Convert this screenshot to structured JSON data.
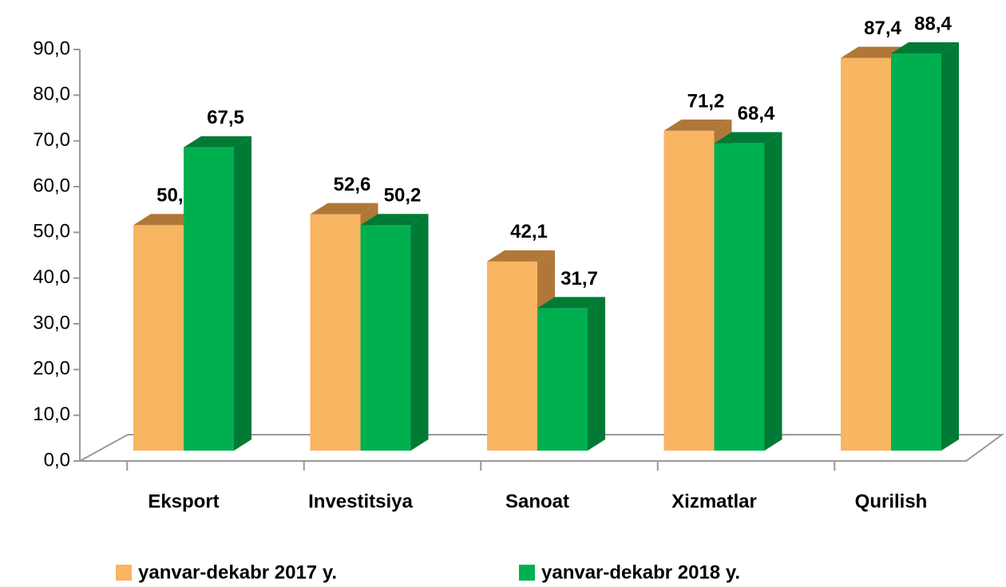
{
  "chart_data": {
    "type": "bar3d",
    "categories": [
      "Eksport",
      "Investitsiya",
      "Sanoat",
      "Xizmatlar",
      "Qurilish"
    ],
    "series": [
      {
        "name": "yanvar-dekabr 2017 y.",
        "color": "#F8B562",
        "side_color": "#B07838",
        "values": [
          50.2,
          52.6,
          42.1,
          71.2,
          87.4
        ],
        "value_labels": [
          "50,2",
          "52,6",
          "42,1",
          "71,2",
          "87,4"
        ]
      },
      {
        "name": "yanvar-dekabr 2018 y.",
        "color": "#00B050",
        "side_color": "#007A35",
        "values": [
          67.5,
          50.2,
          31.7,
          68.4,
          88.4
        ],
        "value_labels": [
          "67,5",
          "50,2",
          "31,7",
          "68,4",
          "88,4"
        ]
      }
    ],
    "ylim": [
      0,
      90
    ],
    "yticks": [
      {
        "value": 0,
        "label": "0,0"
      },
      {
        "value": 10,
        "label": "10,0"
      },
      {
        "value": 20,
        "label": "20,0"
      },
      {
        "value": 30,
        "label": "30,0"
      },
      {
        "value": 40,
        "label": "40,0"
      },
      {
        "value": 50,
        "label": "50,0"
      },
      {
        "value": 60,
        "label": "60,0"
      },
      {
        "value": 70,
        "label": "70,0"
      },
      {
        "value": 80,
        "label": "80,0"
      },
      {
        "value": 90,
        "label": "90,0"
      }
    ],
    "legend": "bottom"
  }
}
